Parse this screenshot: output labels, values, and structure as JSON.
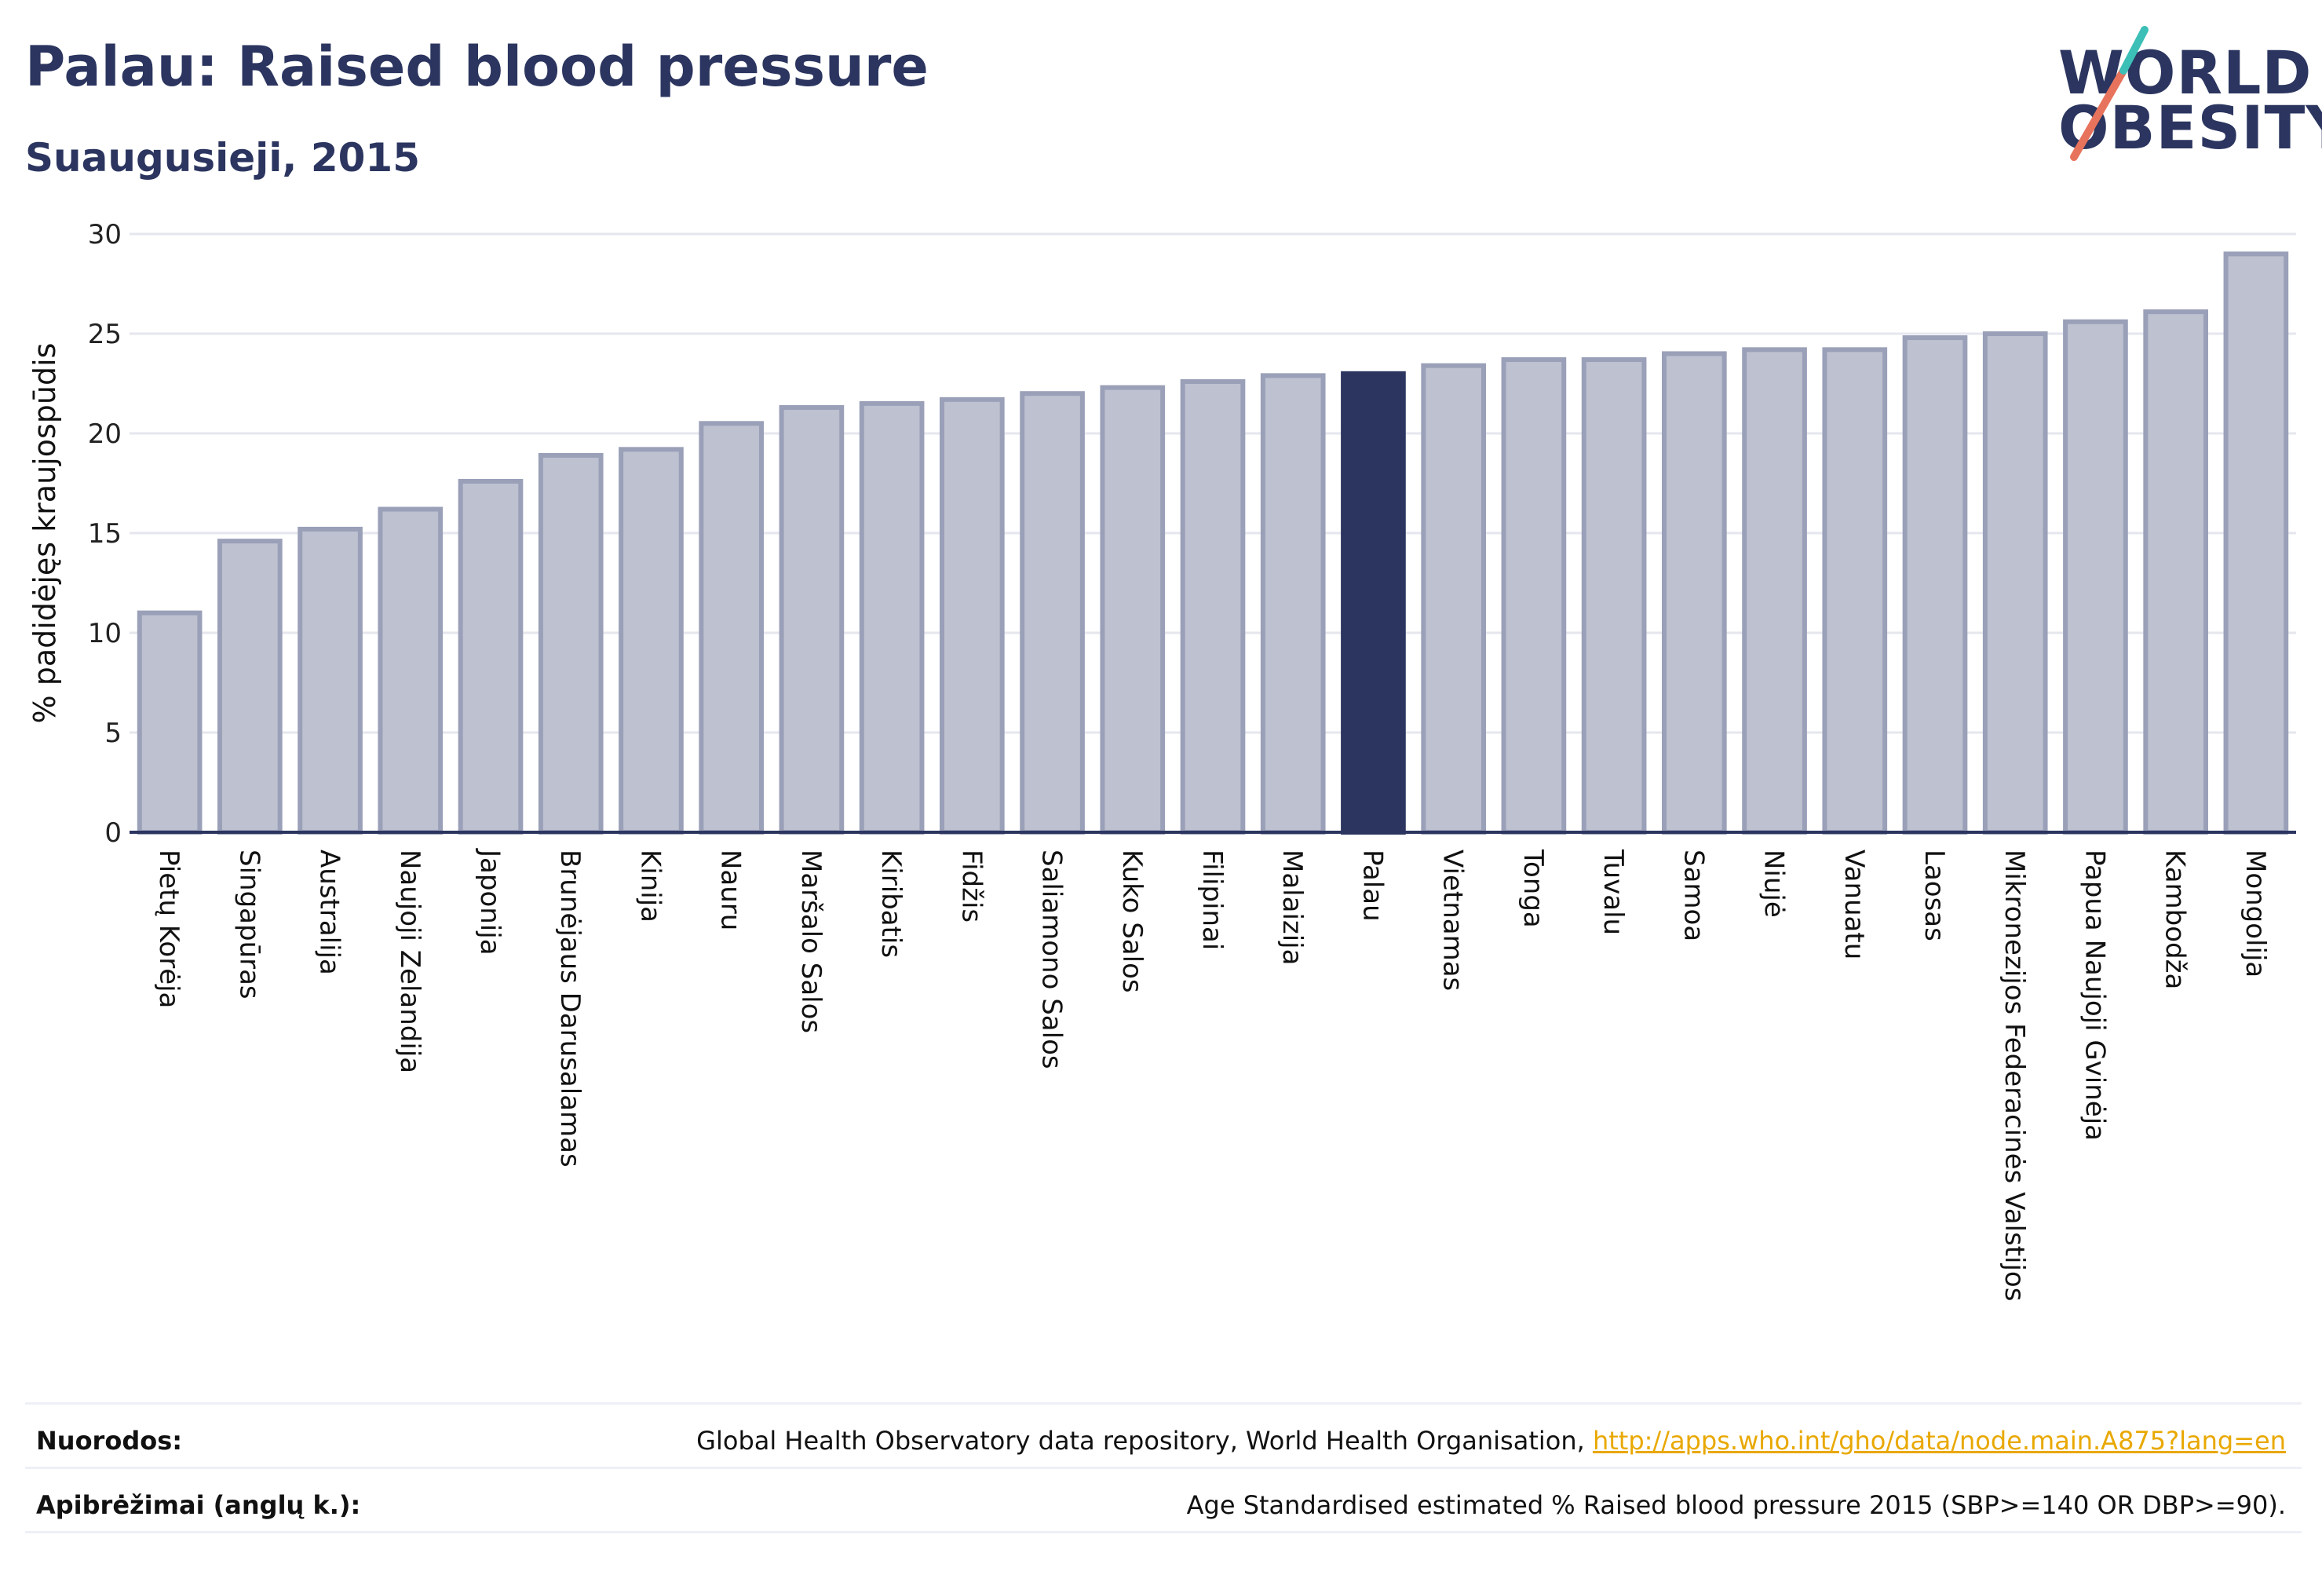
{
  "header": {
    "title": "Palau: Raised blood pressure",
    "subtitle": "Suaugusieji, 2015"
  },
  "logo": {
    "line1": "WORLD",
    "line2": "OBESITY"
  },
  "colors": {
    "primary": "#2b355f",
    "bar_fill": "#bdc1d0",
    "bar_stroke": "#9aa0b8",
    "highlight": "#2b355f",
    "link": "#e9a800",
    "logo_slash_red": "#e8735d",
    "logo_slash_teal": "#3bbfb6"
  },
  "footer": {
    "sources_label": "Nuorodos:",
    "sources_text": "Global Health Observatory data repository, World Health Organisation, ",
    "sources_link": "http://apps.who.int/gho/data/node.main.A875?lang=en",
    "definitions_label": "Apibrėžimai (anglų k.):",
    "definitions_text": "Age Standardised estimated % Raised blood pressure 2015 (SBP>=140 OR DBP>=90)."
  },
  "chart_data": {
    "type": "bar",
    "ylabel": "% padidėjęs kraujospūdis",
    "ylim": [
      0,
      30
    ],
    "yticks": [
      0,
      5,
      10,
      15,
      20,
      25,
      30
    ],
    "grid": true,
    "highlight": "Palau",
    "categories": [
      "Pietų Korėja",
      "Singapūras",
      "Australija",
      "Naujoji Zelandija",
      "Japonija",
      "Brunėjaus Darusalamas",
      "Kinija",
      "Nauru",
      "Maršalo Salos",
      "Kiribatis",
      "Fidžis",
      "Saliamono Salos",
      "Kuko Salos",
      "Filipinai",
      "Malaizija",
      "Palau",
      "Vietnamas",
      "Tonga",
      "Tuvalu",
      "Samoa",
      "Niujė",
      "Vanuatu",
      "Laosas",
      "Mikronezijos Federacinės Valstijos",
      "Papua Naujoji Gvinėja",
      "Kambodža",
      "Mongolija"
    ],
    "values": [
      11.0,
      14.6,
      15.2,
      16.2,
      17.6,
      18.9,
      19.2,
      20.5,
      21.3,
      21.5,
      21.7,
      22.0,
      22.3,
      22.6,
      22.9,
      23.0,
      23.4,
      23.7,
      23.7,
      24.0,
      24.2,
      24.2,
      24.8,
      25.0,
      25.6,
      26.1,
      29.0
    ]
  }
}
